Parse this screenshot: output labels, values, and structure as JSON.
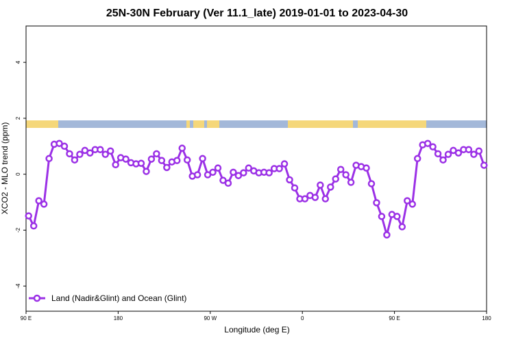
{
  "chart_data": {
    "type": "line",
    "title": "25N-30N February (Ver 11.1_late)   2019-01-01 to 2023-04-30",
    "x_label": "Longitude (deg E)",
    "y_label": "XCO2 - MLO trend (ppm)",
    "xlim": [
      90,
      540
    ],
    "ylim": [
      -4.9,
      5.3
    ],
    "xticks": [
      {
        "value": 90,
        "label": "90 E"
      },
      {
        "value": 180,
        "label": "180"
      },
      {
        "value": 270,
        "label": "90 W"
      },
      {
        "value": 360,
        "label": "0"
      },
      {
        "value": 450,
        "label": "90 E"
      },
      {
        "value": 540,
        "label": "180"
      }
    ],
    "yticks": [
      -4,
      -2,
      0,
      2,
      4
    ],
    "legend": "bottomleft",
    "x": [
      92.5,
      97.5,
      102.5,
      107.5,
      112.5,
      117.5,
      122.5,
      127.5,
      132.5,
      137.5,
      142.5,
      147.5,
      152.5,
      157.5,
      162.5,
      167.5,
      172.5,
      177.5,
      182.5,
      187.5,
      192.5,
      197.5,
      202.5,
      207.5,
      212.5,
      217.5,
      222.5,
      227.5,
      232.5,
      237.5,
      242.5,
      247.5,
      252.5,
      257.5,
      262.5,
      267.5,
      272.5,
      277.5,
      282.5,
      287.5,
      292.5,
      297.5,
      302.5,
      307.5,
      312.5,
      317.5,
      322.5,
      327.5,
      332.5,
      337.5,
      342.5,
      347.5,
      352.5,
      357.5,
      362.5,
      367.5,
      372.5,
      377.5,
      382.5,
      387.5,
      392.5,
      397.5,
      402.5,
      407.5,
      412.5,
      417.5,
      422.5,
      427.5,
      432.5,
      437.5,
      442.5,
      447.5,
      452.5,
      457.5,
      462.5,
      467.5,
      472.5,
      477.5,
      482.5,
      487.5,
      492.5,
      497.5,
      502.5,
      507.5,
      512.5,
      517.5,
      522.5,
      527.5,
      532.5,
      537.5
    ],
    "series": [
      {
        "name": "Land (Nadir&Glint) and Ocean (Glint)",
        "color": "#9b30e6",
        "values": [
          -1.49,
          -1.85,
          -0.95,
          -1.07,
          0.56,
          1.07,
          1.1,
          1.0,
          0.73,
          0.51,
          0.71,
          0.85,
          0.76,
          0.88,
          0.88,
          0.71,
          0.83,
          0.34,
          0.59,
          0.54,
          0.41,
          0.37,
          0.39,
          0.1,
          0.54,
          0.73,
          0.49,
          0.24,
          0.44,
          0.49,
          0.93,
          0.51,
          -0.07,
          -0.02,
          0.56,
          -0.02,
          0.07,
          0.22,
          -0.22,
          -0.32,
          0.07,
          -0.05,
          0.05,
          0.22,
          0.12,
          0.05,
          0.07,
          0.05,
          0.2,
          0.2,
          0.37,
          -0.2,
          -0.49,
          -0.88,
          -0.88,
          -0.76,
          -0.83,
          -0.39,
          -0.88,
          -0.46,
          -0.17,
          0.17,
          -0.02,
          -0.29,
          0.32,
          0.27,
          0.22,
          -0.34,
          -1.02,
          -1.51,
          -2.17,
          -1.44,
          -1.51,
          -1.88,
          -0.95,
          -1.07,
          0.56,
          1.05,
          1.1,
          0.98,
          0.73,
          0.51,
          0.71,
          0.85,
          0.76,
          0.88,
          0.88,
          0.71,
          0.83,
          0.32
        ]
      }
    ]
  }
}
